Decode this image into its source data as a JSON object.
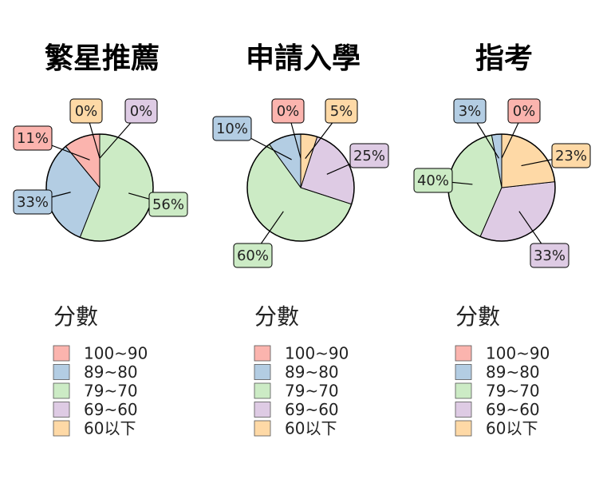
{
  "chart_data": [
    {
      "type": "pie",
      "title": "繁星推薦",
      "legend_title": "分數",
      "categories": [
        "100~90",
        "89~80",
        "79~70",
        "69~60",
        "60以下"
      ],
      "values": [
        11,
        33,
        56,
        0,
        0
      ],
      "labels": [
        "11%",
        "33%",
        "56%",
        "0%",
        "0%"
      ],
      "colors": [
        "#fbb4ae",
        "#b3cde3",
        "#ccebc5",
        "#decbe4",
        "#fed9a6"
      ],
      "legend": "bottom"
    },
    {
      "type": "pie",
      "title": "申請入學",
      "legend_title": "分數",
      "categories": [
        "100~90",
        "89~80",
        "79~70",
        "69~60",
        "60以下"
      ],
      "values": [
        0,
        10,
        60,
        25,
        5
      ],
      "labels": [
        "0%",
        "10%",
        "60%",
        "25%",
        "5%"
      ],
      "colors": [
        "#fbb4ae",
        "#b3cde3",
        "#ccebc5",
        "#decbe4",
        "#fed9a6"
      ],
      "legend": "bottom"
    },
    {
      "type": "pie",
      "title": "指考",
      "legend_title": "分數",
      "categories": [
        "100~90",
        "89~80",
        "79~70",
        "69~60",
        "60以下"
      ],
      "values": [
        0,
        3,
        40,
        33,
        23
      ],
      "labels": [
        "0%",
        "3%",
        "40%",
        "33%",
        "23%"
      ],
      "colors": [
        "#fbb4ae",
        "#b3cde3",
        "#ccebc5",
        "#decbe4",
        "#fed9a6"
      ],
      "legend": "bottom"
    }
  ]
}
